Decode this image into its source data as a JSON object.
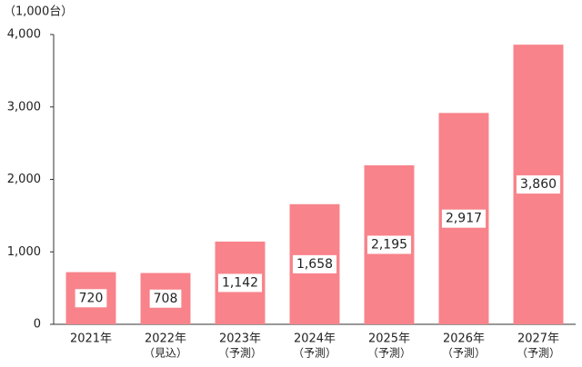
{
  "chart_data": {
    "type": "bar",
    "unit_label": "（1,000台）",
    "categories": [
      "2021年",
      "2022年",
      "2023年",
      "2024年",
      "2025年",
      "2026年",
      "2027年"
    ],
    "category_notes": [
      null,
      "（見込）",
      "（予測）",
      "（予測）",
      "（予測）",
      "（予測）",
      "（予測）"
    ],
    "values": [
      720,
      708,
      1142,
      1658,
      2195,
      2917,
      3860
    ],
    "value_labels": [
      "720",
      "708",
      "1,142",
      "1,658",
      "2,195",
      "2,917",
      "3,860"
    ],
    "color": "#f8838a",
    "ylim": [
      0,
      4000
    ],
    "yticks": [
      0,
      {
        "value": 1000,
        "label": "1,000"
      },
      {
        "value": 2000,
        "label": "2,000"
      },
      {
        "value": 3000,
        "label": "3,000"
      },
      {
        "value": 4000,
        "label": "4,000"
      }
    ],
    "grid": false
  }
}
